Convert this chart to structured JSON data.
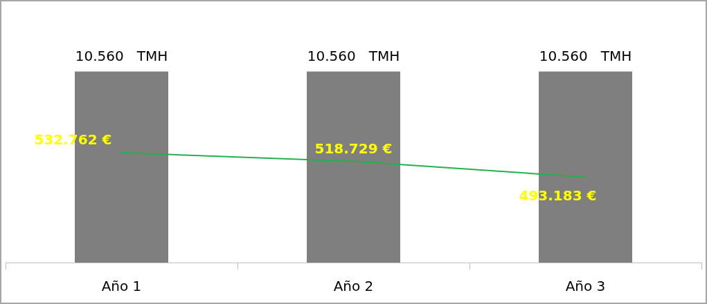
{
  "chart_data": {
    "type": "bar",
    "categories": [
      "Año 1",
      "Año 2",
      "Año 3"
    ],
    "series": [
      {
        "color": "#7f7f7f",
        "values": [
          10560,
          10560,
          10560
        ],
        "value_labels": [
          "10.560   TMH",
          "10.560   TMH",
          "10.560   TMH"
        ]
      },
      {
        "type": "line",
        "axis": "y2",
        "color": "#22b14c",
        "marker": "none",
        "values": [
          532762,
          518729,
          493183
        ],
        "value_labels": [
          "532.762 €",
          "518.729 €",
          "493.183 €"
        ]
      }
    ],
    "tick_labels": "x",
    "grid": false
  }
}
